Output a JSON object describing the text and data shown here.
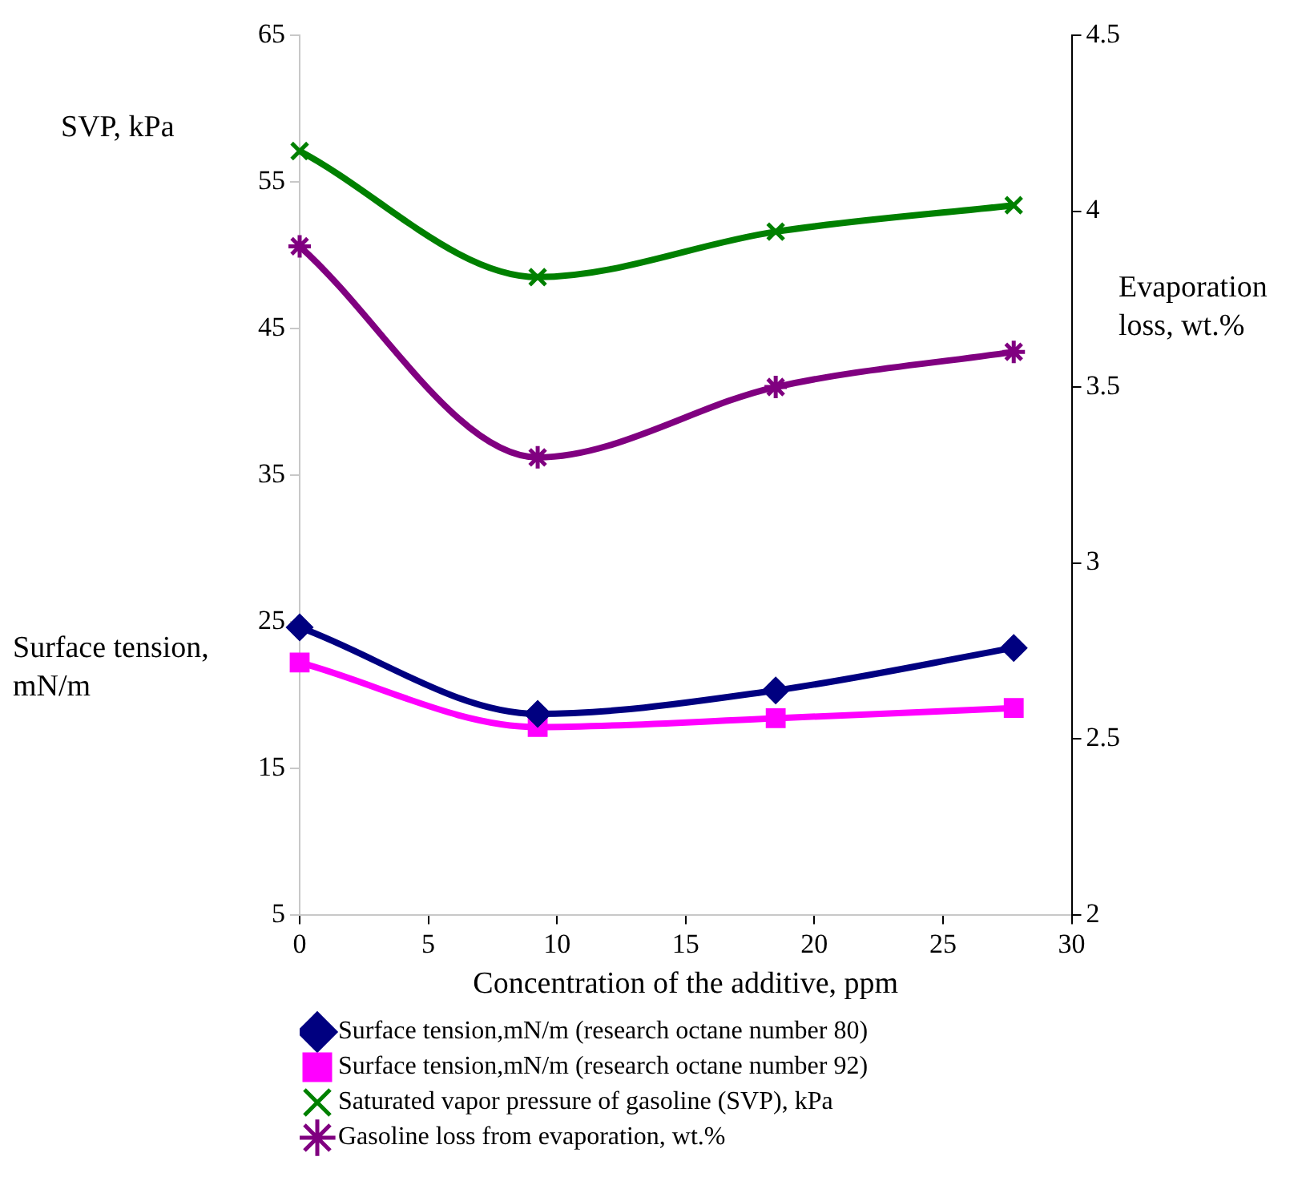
{
  "chart_data": {
    "type": "line",
    "xlabel": "Concentration of the additive, ppm",
    "ylabel": "Surface tension, mN/m",
    "y2label": "Evaporation loss, wt.%",
    "annotations": [
      "SVP, kPa"
    ],
    "x": [
      0,
      9.25,
      18.5,
      27.75
    ],
    "xlim": [
      0,
      30
    ],
    "xticks": [
      0,
      5,
      10,
      15,
      20,
      25,
      30
    ],
    "ylim": [
      5,
      65
    ],
    "yticks": [
      5,
      15,
      25,
      35,
      45,
      55,
      65
    ],
    "y2lim": [
      2,
      4.5
    ],
    "y2ticks": [
      2,
      2.5,
      3,
      3.5,
      4,
      4.5
    ],
    "grid": false,
    "legend": "bottom",
    "series": [
      {
        "name": "Surface tension,mN/m (research octane number 80)",
        "color": "#000080",
        "marker": "diamond",
        "values": [
          24.6,
          18.7,
          20.3,
          23.2
        ]
      },
      {
        "name": "Surface tension,mN/m (research octane number 92)",
        "color": "#ff00ff",
        "marker": "square",
        "values": [
          22.2,
          17.8,
          18.4,
          19.1
        ]
      },
      {
        "name": "Saturated vapor pressure of gasoline (SVP), kPa",
        "color": "#008000",
        "marker": "cross",
        "values": [
          57.1,
          48.5,
          51.6,
          53.4
        ]
      },
      {
        "name": "Gasoline loss from evaporation, wt.%",
        "color": "#800080",
        "marker": "cross",
        "axis": "y2",
        "values": [
          3.9,
          3.3,
          3.5,
          3.6
        ]
      }
    ]
  }
}
